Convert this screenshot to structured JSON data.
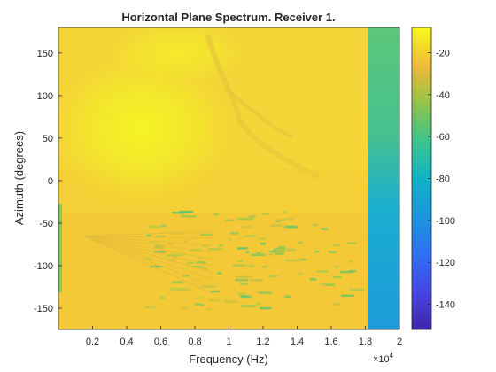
{
  "chart_data": {
    "type": "heatmap",
    "title": "Horizontal Plane Spectrum. Receiver 1.",
    "xlabel": "Frequency (Hz)",
    "ylabel": "Azimuth (degrees)",
    "x_exponent_label": "×10",
    "x_exponent_power": "4",
    "xlim": [
      0,
      20000
    ],
    "ylim": [
      -175,
      180
    ],
    "x_ticks": [
      2000,
      4000,
      6000,
      8000,
      10000,
      12000,
      14000,
      16000,
      18000,
      20000
    ],
    "x_tick_labels": [
      "0.2",
      "0.4",
      "0.6",
      "0.8",
      "1",
      "1.2",
      "1.4",
      "1.6",
      "1.8",
      "2"
    ],
    "y_ticks": [
      150,
      100,
      50,
      0,
      -50,
      -100,
      -150
    ],
    "y_tick_labels": [
      "150",
      "100",
      "50",
      "0",
      "-50",
      "-100",
      "-150"
    ],
    "colorbar": {
      "clim": [
        -152,
        -8
      ],
      "ticks": [
        -20,
        -40,
        -60,
        -80,
        -100,
        -120,
        -140
      ],
      "tick_labels": [
        "-20",
        "-40",
        "-60",
        "-80",
        "-100",
        "-120",
        "-140"
      ],
      "colormap": "parula"
    },
    "grid": false,
    "levels": {
      "peak_region": -10,
      "upper_band": -30,
      "lower_band": -36,
      "striations": -55,
      "high_freq_edge": -75,
      "high_freq_lower": -90
    }
  }
}
